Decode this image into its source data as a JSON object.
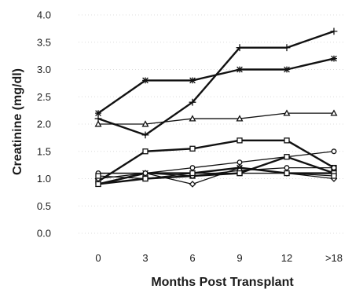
{
  "chart_data": {
    "type": "line",
    "xlabel": "Months Post Transplant",
    "ylabel": "Creatinine (mg/dl)",
    "categories": [
      "0",
      "3",
      "6",
      "9",
      "12",
      ">18"
    ],
    "ylim": [
      0,
      4
    ],
    "yticks": [
      "0.0",
      "0.5",
      "1.0",
      "1.5",
      "2.0",
      "2.5",
      "3.0",
      "3.5",
      "4.0"
    ],
    "grid": "faint horizontal dotted",
    "legend": "none",
    "series": [
      {
        "marker": "plus",
        "weight": "thick",
        "values": [
          2.1,
          1.8,
          2.4,
          3.4,
          3.4,
          3.7
        ]
      },
      {
        "marker": "star",
        "weight": "thick",
        "values": [
          2.2,
          2.8,
          2.8,
          3.0,
          3.0,
          3.2
        ]
      },
      {
        "marker": "triangle",
        "weight": "thin",
        "values": [
          2.0,
          2.0,
          2.1,
          2.1,
          2.2,
          2.2
        ]
      },
      {
        "marker": "square",
        "weight": "thick",
        "values": [
          0.95,
          1.5,
          1.55,
          1.7,
          1.7,
          1.2
        ]
      },
      {
        "marker": "circle",
        "weight": "thin",
        "values": [
          1.1,
          1.1,
          1.2,
          1.3,
          1.4,
          1.5
        ]
      },
      {
        "marker": "diamond",
        "weight": "thin",
        "values": [
          1.0,
          1.1,
          0.9,
          1.2,
          1.1,
          1.0
        ]
      },
      {
        "marker": "x",
        "weight": "thick",
        "values": [
          0.9,
          1.1,
          1.1,
          1.2,
          1.1,
          1.1
        ]
      },
      {
        "marker": "square",
        "weight": "thick",
        "values": [
          0.9,
          1.0,
          1.05,
          1.1,
          1.4,
          1.1
        ]
      },
      {
        "marker": "circle",
        "weight": "thin",
        "values": [
          1.1,
          1.1,
          1.05,
          1.15,
          1.2,
          1.2
        ]
      },
      {
        "marker": "square",
        "weight": "thin",
        "values": [
          1.05,
          1.0,
          1.1,
          1.1,
          1.1,
          1.05
        ]
      }
    ]
  }
}
